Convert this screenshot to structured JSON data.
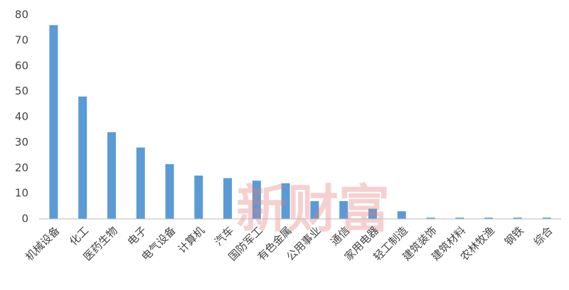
{
  "chart_data": {
    "type": "bar",
    "categories": [
      "机械设备",
      "化工",
      "医药生物",
      "电子",
      "电气设备",
      "计算机",
      "汽车",
      "国防军工",
      "有色金属",
      "公用事业",
      "通信",
      "家用电器",
      "轻工制造",
      "建筑装饰",
      "建筑材料",
      "农林牧渔",
      "钢铁",
      "综合"
    ],
    "values": [
      76,
      48,
      34,
      28,
      21.5,
      17,
      16,
      15,
      14,
      7,
      7,
      4,
      3,
      0.5,
      0.5,
      0.5,
      0.5,
      0.5
    ],
    "color": "#5b9bd5",
    "ylim": [
      0,
      80
    ],
    "yticks": [
      0,
      10,
      20,
      30,
      40,
      50,
      60,
      70,
      80
    ],
    "grid": false,
    "watermark": "新财富"
  }
}
